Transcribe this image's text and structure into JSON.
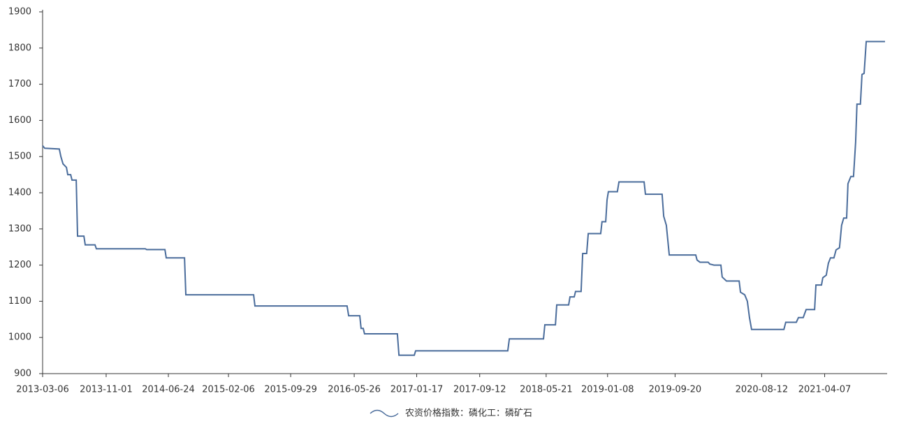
{
  "chart_data": {
    "type": "line",
    "x": [
      "2013-03-06",
      "2013-03-14",
      "2013-05-08",
      "2013-05-14",
      "2013-05-22",
      "2013-06-04",
      "2013-06-09",
      "2013-06-20",
      "2013-06-25",
      "2013-07-11",
      "2013-07-16",
      "2013-08-09",
      "2013-08-14",
      "2013-09-20",
      "2013-09-25",
      "2014-03-29",
      "2014-04-03",
      "2014-06-11",
      "2014-06-16",
      "2014-08-24",
      "2014-08-29",
      "2015-05-12",
      "2015-05-17",
      "2016-04-29",
      "2016-05-05",
      "2016-06-16",
      "2016-06-21",
      "2016-06-29",
      "2016-07-04",
      "2016-11-05",
      "2016-11-11",
      "2017-01-08",
      "2017-01-13",
      "2017-12-27",
      "2018-01-02",
      "2018-05-11",
      "2018-05-16",
      "2018-06-25",
      "2018-06-30",
      "2018-08-14",
      "2018-08-19",
      "2018-09-04",
      "2018-09-09",
      "2018-09-30",
      "2018-10-06",
      "2018-10-21",
      "2018-10-27",
      "2018-12-13",
      "2018-12-18",
      "2019-01-01",
      "2019-01-06",
      "2019-01-11",
      "2019-02-14",
      "2019-02-20",
      "2019-05-26",
      "2019-05-31",
      "2019-08-02",
      "2019-08-08",
      "2019-08-18",
      "2019-08-29",
      "2019-12-07",
      "2019-12-12",
      "2019-12-23",
      "2020-01-23",
      "2020-01-29",
      "2020-02-14",
      "2020-03-11",
      "2020-03-16",
      "2020-04-01",
      "2020-05-19",
      "2020-05-24",
      "2020-06-09",
      "2020-06-19",
      "2020-06-27",
      "2020-07-05",
      "2020-11-04",
      "2020-11-11",
      "2020-12-21",
      "2020-12-29",
      "2021-01-16",
      "2021-01-27",
      "2021-02-28",
      "2021-03-05",
      "2021-03-26",
      "2021-03-31",
      "2021-04-13",
      "2021-04-21",
      "2021-04-29",
      "2021-05-12",
      "2021-05-20",
      "2021-06-02",
      "2021-06-10",
      "2021-06-18",
      "2021-06-29",
      "2021-07-04",
      "2021-07-15",
      "2021-07-25",
      "2021-08-02",
      "2021-08-07",
      "2021-08-20",
      "2021-08-26",
      "2021-09-03",
      "2021-09-11",
      "2021-11-21"
    ],
    "series": [
      {
        "name": "农资价格指数：磷化工：磷矿石",
        "color": "#4a6c9b",
        "values": [
          1530,
          1523,
          1521,
          1500,
          1480,
          1470,
          1450,
          1450,
          1435,
          1435,
          1280,
          1280,
          1256,
          1256,
          1245,
          1245,
          1243,
          1243,
          1220,
          1220,
          1118,
          1118,
          1087,
          1087,
          1060,
          1060,
          1025,
          1025,
          1010,
          1010,
          951,
          951,
          963,
          963,
          996,
          996,
          1035,
          1035,
          1090,
          1090,
          1112,
          1112,
          1127,
          1127,
          1232,
          1232,
          1287,
          1287,
          1320,
          1320,
          1380,
          1403,
          1403,
          1430,
          1430,
          1396,
          1396,
          1335,
          1310,
          1228,
          1228,
          1214,
          1208,
          1208,
          1203,
          1200,
          1200,
          1167,
          1156,
          1156,
          1125,
          1118,
          1100,
          1055,
          1022,
          1022,
          1042,
          1042,
          1055,
          1055,
          1077,
          1077,
          1145,
          1145,
          1165,
          1172,
          1205,
          1220,
          1220,
          1242,
          1248,
          1310,
          1330,
          1330,
          1425,
          1445,
          1445,
          1540,
          1645,
          1645,
          1727,
          1730,
          1818,
          1818
        ]
      }
    ],
    "xlim": [
      "2013-03-06",
      "2021-11-29"
    ],
    "xticks": [
      "2013-03-06",
      "2013-11-01",
      "2014-06-24",
      "2015-02-06",
      "2015-09-29",
      "2016-05-26",
      "2017-01-17",
      "2017-09-12",
      "2018-05-21",
      "2019-01-08",
      "2019-09-20",
      "2020-08-12",
      "2021-04-07"
    ],
    "ylim": [
      900,
      1900
    ],
    "yticks": [
      900,
      1000,
      1100,
      1200,
      1300,
      1400,
      1500,
      1600,
      1700,
      1800,
      1900
    ]
  }
}
